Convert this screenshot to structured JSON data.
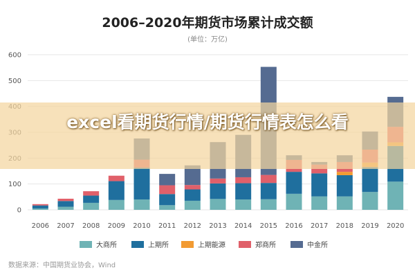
{
  "chart_data": {
    "type": "bar",
    "stacked": true,
    "title": "2006–2020年期货市场累计成交额",
    "unit": "(单位：万亿)",
    "categories": [
      "2006",
      "2007",
      "2008",
      "2009",
      "2010",
      "2011",
      "2012",
      "2013",
      "2014",
      "2015",
      "2016",
      "2017",
      "2018",
      "2019",
      "2020"
    ],
    "ylim": [
      0,
      600
    ],
    "yticks": [
      0,
      100,
      200,
      300,
      400,
      500,
      600
    ],
    "grid": true,
    "legend_position": "bottom",
    "series": [
      {
        "name": "大商所",
        "color": "#6fb3b5",
        "values": [
          5,
          12,
          27,
          38,
          40,
          18,
          35,
          42,
          40,
          41,
          62,
          52,
          52,
          69,
          109
        ]
      },
      {
        "name": "上期所",
        "color": "#1f6f9e",
        "values": [
          12,
          22,
          28,
          73,
          123,
          43,
          44,
          60,
          63,
          63,
          85,
          89,
          82,
          96,
          138
        ]
      },
      {
        "name": "上期能源",
        "color": "#f29b33",
        "values": [
          0,
          0,
          0,
          0,
          0,
          0,
          0,
          0,
          0,
          0,
          0,
          0,
          13,
          18,
          14
        ]
      },
      {
        "name": "郑商所",
        "color": "#e0606a",
        "values": [
          5,
          9,
          17,
          21,
          31,
          34,
          17,
          19,
          23,
          31,
          46,
          34,
          38,
          50,
          60
        ]
      },
      {
        "name": "中金所",
        "color": "#556b91",
        "values": [
          0,
          0,
          0,
          0,
          82,
          44,
          76,
          141,
          164,
          418,
          18,
          10,
          26,
          70,
          116
        ]
      }
    ]
  },
  "source_text": "数据来源：中国期货业协会，Wind",
  "overlay_text": "excel看期货行情/期货行情表怎么看"
}
